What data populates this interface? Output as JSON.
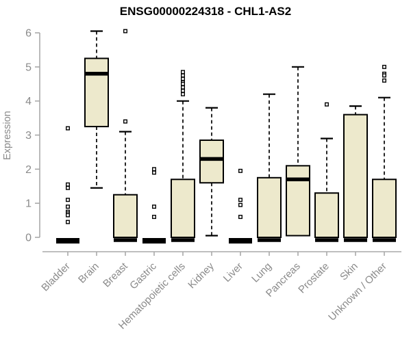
{
  "chart_data": {
    "type": "boxplot",
    "title": "ENSG00000224318 - CHL1-AS2",
    "ylabel": "Expression",
    "xlabel": "",
    "ylim": [
      0,
      6
    ],
    "yticks": [
      0,
      1,
      2,
      3,
      4,
      5,
      6
    ],
    "grid": false,
    "legend": false,
    "categories": [
      "Bladder",
      "Brain",
      "Breast",
      "Gastric",
      "Hematopoietic cells",
      "Kidney",
      "Liver",
      "Lung",
      "Pancreas",
      "Prostate",
      "Skin",
      "Unknown / Other"
    ],
    "boxes": [
      {
        "category": "Bladder",
        "q1": 0,
        "median": 0,
        "q3": 0,
        "whisker_low": 0,
        "whisker_high": 0,
        "outliers": [
          3.2,
          1.55,
          1.45,
          1.1,
          0.9,
          0.75,
          0.7,
          0.65,
          0.45
        ]
      },
      {
        "category": "Brain",
        "q1": 3.25,
        "median": 4.8,
        "q3": 5.25,
        "whisker_low": 1.45,
        "whisker_high": 6.05,
        "outliers": []
      },
      {
        "category": "Breast",
        "q1": 0,
        "median": 0,
        "q3": 1.25,
        "whisker_low": 0,
        "whisker_high": 3.1,
        "outliers": [
          6.05,
          3.4
        ]
      },
      {
        "category": "Gastric",
        "q1": 0,
        "median": 0,
        "q3": 0,
        "whisker_low": 0,
        "whisker_high": 0,
        "outliers": [
          2.0,
          1.9,
          0.9,
          0.6
        ]
      },
      {
        "category": "Hematopoietic cells",
        "q1": 0,
        "median": 0,
        "q3": 1.7,
        "whisker_low": 0,
        "whisker_high": 4.0,
        "outliers": [
          4.85,
          4.75,
          4.65,
          4.55,
          4.5,
          4.4,
          4.3,
          4.2
        ]
      },
      {
        "category": "Kidney",
        "q1": 1.6,
        "median": 2.3,
        "q3": 2.85,
        "whisker_low": 0.05,
        "whisker_high": 3.8,
        "outliers": []
      },
      {
        "category": "Liver",
        "q1": 0,
        "median": 0,
        "q3": 0,
        "whisker_low": 0,
        "whisker_high": 0,
        "outliers": [
          1.95,
          1.1,
          0.95,
          0.6
        ]
      },
      {
        "category": "Lung",
        "q1": 0,
        "median": 0,
        "q3": 1.75,
        "whisker_low": 0,
        "whisker_high": 4.2,
        "outliers": []
      },
      {
        "category": "Pancreas",
        "q1": 0.05,
        "median": 1.7,
        "q3": 2.1,
        "whisker_low": 0.05,
        "whisker_high": 5.0,
        "outliers": []
      },
      {
        "category": "Prostate",
        "q1": 0,
        "median": 0,
        "q3": 1.3,
        "whisker_low": 0,
        "whisker_high": 2.9,
        "outliers": [
          3.9
        ]
      },
      {
        "category": "Skin",
        "q1": 0,
        "median": 0,
        "q3": 3.6,
        "whisker_low": 0,
        "whisker_high": 3.85,
        "outliers": []
      },
      {
        "category": "Unknown / Other",
        "q1": 0,
        "median": 0,
        "q3": 1.7,
        "whisker_low": 0,
        "whisker_high": 4.1,
        "outliers": [
          5.0,
          4.8,
          4.75,
          4.6
        ]
      }
    ],
    "colors": {
      "box_fill": "#ede9cc",
      "box_border": "#000000",
      "whisker": "#000000",
      "median": "#000000",
      "outlier_border": "#000000",
      "outlier_fill": "#ffffff",
      "axis_line": "#a9a9a9",
      "axis_text": "#8a8a8a",
      "title_text": "#000000",
      "background": "#ffffff"
    }
  }
}
